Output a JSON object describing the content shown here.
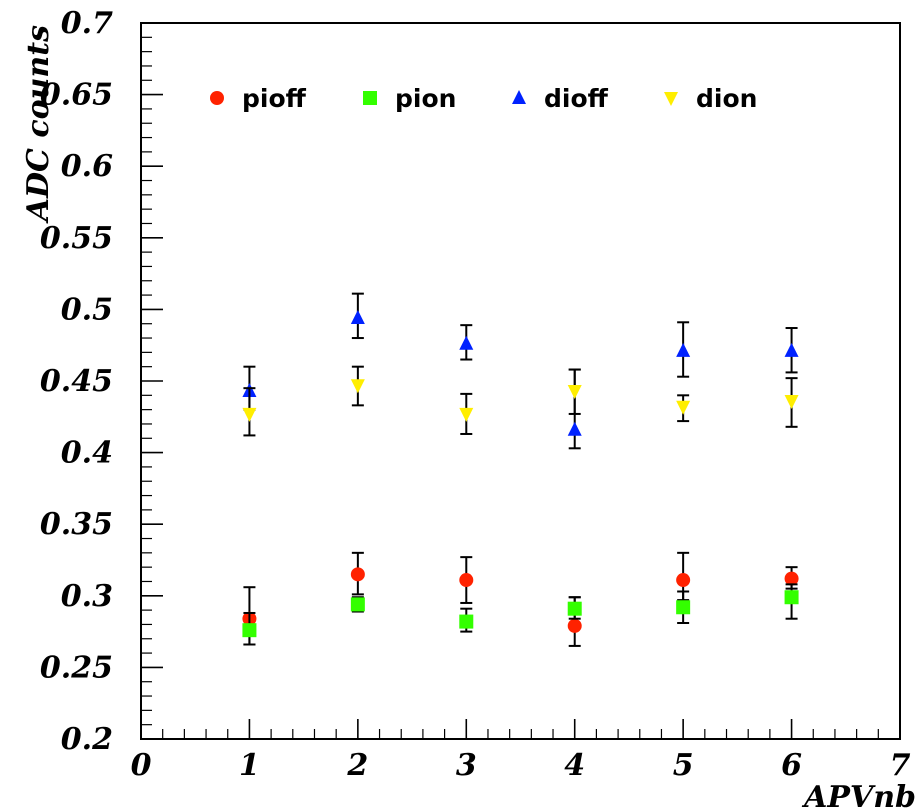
{
  "chart_data": {
    "type": "scatter",
    "xlabel": "APVnb",
    "ylabel": "ADC counts",
    "xlim": [
      0,
      7
    ],
    "ylim": [
      0.2,
      0.7
    ],
    "x_ticks": [
      "0",
      "1",
      "2",
      "3",
      "4",
      "5",
      "6",
      "7"
    ],
    "y_ticks": [
      "0.2",
      "0.25",
      "0.3",
      "0.35",
      "0.4",
      "0.45",
      "0.5",
      "0.55",
      "0.6",
      "0.65",
      "0.7"
    ],
    "grid": false,
    "legend": "top",
    "series": [
      {
        "name": "pioff",
        "marker": "circle",
        "color": "#ff2200",
        "x": [
          1,
          2,
          3,
          4,
          5,
          6
        ],
        "y": [
          0.284,
          0.315,
          0.311,
          0.279,
          0.311,
          0.312
        ],
        "err_low": [
          0.018,
          0.014,
          0.016,
          0.014,
          0.014,
          0.007
        ],
        "err_high": [
          0.022,
          0.015,
          0.016,
          0.02,
          0.019,
          0.008
        ]
      },
      {
        "name": "pion",
        "marker": "square",
        "color": "#33ff00",
        "x": [
          1,
          2,
          3,
          4,
          5,
          6
        ],
        "y": [
          0.276,
          0.294,
          0.282,
          0.291,
          0.292,
          0.299
        ],
        "err_low": [
          0.01,
          0.005,
          0.007,
          0.007,
          0.011,
          0.015
        ],
        "err_high": [
          0.012,
          0.005,
          0.009,
          0.008,
          0.011,
          0.009
        ]
      },
      {
        "name": "dioff",
        "marker": "triangle-up",
        "color": "#0022ff",
        "x": [
          1,
          2,
          3,
          4,
          5,
          6
        ],
        "y": [
          0.443,
          0.494,
          0.476,
          0.416,
          0.471,
          0.471
        ],
        "err_low": [
          0.013,
          0.014,
          0.011,
          0.013,
          0.018,
          0.015
        ],
        "err_high": [
          0.017,
          0.017,
          0.013,
          0.042,
          0.02,
          0.016
        ]
      },
      {
        "name": "dion",
        "marker": "triangle-down",
        "color": "#ffee00",
        "x": [
          1,
          2,
          3,
          4,
          5,
          6
        ],
        "y": [
          0.427,
          0.447,
          0.427,
          0.443,
          0.432,
          0.436
        ],
        "err_low": [
          0.015,
          0.014,
          0.014,
          0.016,
          0.01,
          0.018
        ],
        "err_high": [
          0.018,
          0.013,
          0.014,
          0.015,
          0.008,
          0.016
        ]
      }
    ]
  }
}
